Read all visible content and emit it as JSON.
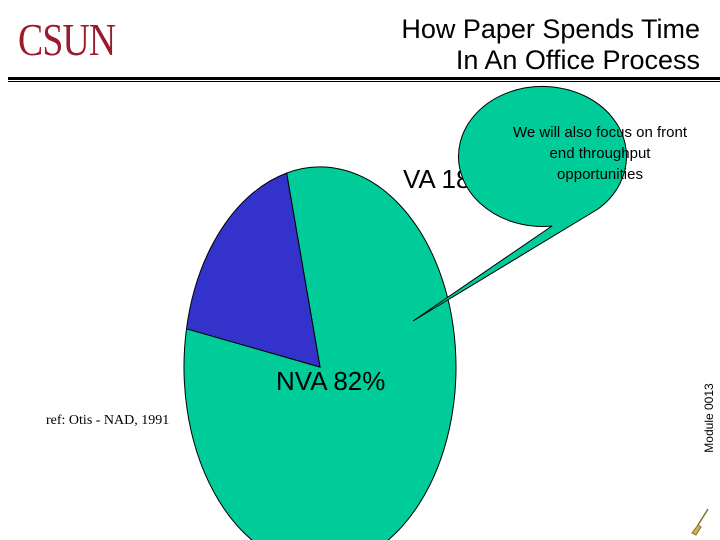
{
  "logo": {
    "text": "CSUN",
    "color": "#9b1b2e"
  },
  "slide": {
    "title_line1": "How Paper Spends Time",
    "title_line2": "In An Office Process"
  },
  "reference": "ref: Otis - NAD, 1991",
  "module_label": "Module 0013",
  "callout": {
    "text": "We will also focus on front end throughput opportunities",
    "fill": "#00cc99"
  },
  "chart_data": {
    "type": "pie",
    "slices": [
      {
        "label": "VA 18%",
        "value": 18,
        "color": "#3333cc"
      },
      {
        "label": "NVA 82%",
        "value": 82,
        "color": "#00cc99"
      }
    ],
    "title": "How Paper Spends Time In An Office Process"
  },
  "icons": {
    "broom": "broom-icon"
  }
}
